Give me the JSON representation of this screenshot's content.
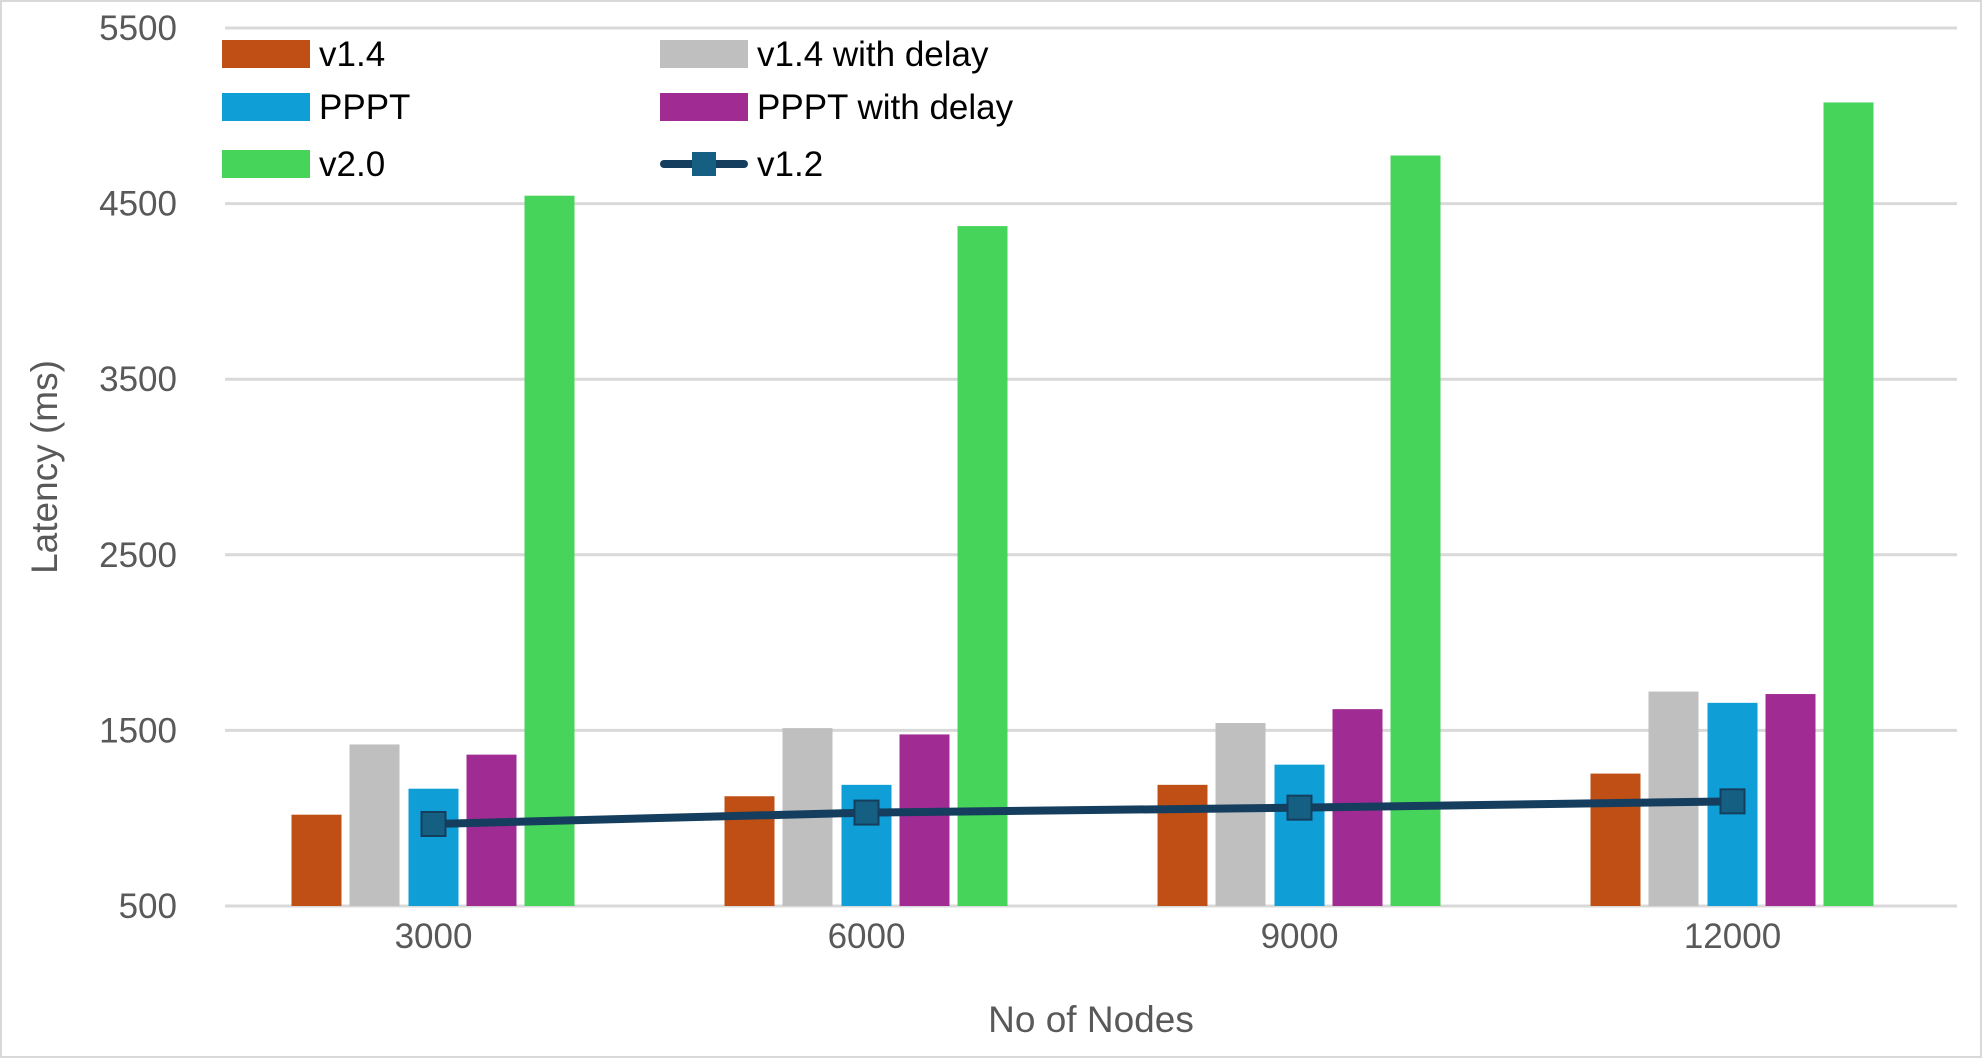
{
  "chart_data": {
    "type": "bar",
    "xlabel": "No of Nodes",
    "ylabel": "Latency (ms)",
    "categories": [
      "3000",
      "6000",
      "9000",
      "12000"
    ],
    "ylim": [
      500,
      5500
    ],
    "yticks": [
      "500",
      "1500",
      "2500",
      "3500",
      "4500",
      "5500"
    ],
    "grid": true,
    "legend_position": "top-left",
    "series": [
      {
        "name": "v1.4",
        "kind": "bar",
        "color": "#C04F15",
        "values": [
          1020,
          1125,
          1190,
          1254
        ]
      },
      {
        "name": "v1.4 with delay",
        "kind": "bar",
        "color": "#BFBFBF",
        "values": [
          1420,
          1513,
          1542,
          1721
        ]
      },
      {
        "name": "PPPT",
        "kind": "bar",
        "color": "#0F9ED5",
        "values": [
          1168,
          1190,
          1305,
          1657
        ]
      },
      {
        "name": "PPPT with delay",
        "kind": "bar",
        "color": "#A02B93",
        "values": [
          1362,
          1477,
          1621,
          1707
        ]
      },
      {
        "name": "v2.0",
        "kind": "bar",
        "color": "#47D45A",
        "values": [
          4545,
          4372,
          4774,
          5076
        ]
      },
      {
        "name": "v1.2",
        "kind": "line",
        "color": "#153E5E",
        "marker_color": "#156082",
        "marker": "square",
        "values": [
          967,
          1032,
          1060,
          1096
        ]
      }
    ]
  }
}
